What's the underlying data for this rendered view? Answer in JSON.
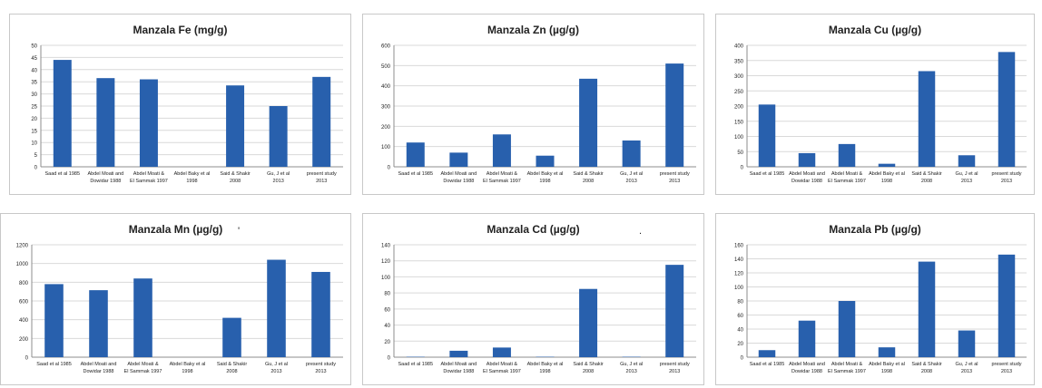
{
  "chart_data": [
    {
      "type": "bar",
      "title": "Manzala Fe (mg/g)",
      "categories": [
        [
          "Saad et al 1985"
        ],
        [
          "Abdel Moati and",
          "Dowidar 1988"
        ],
        [
          "Abdel Moati &",
          "El Sammak 1997"
        ],
        [
          "Abdel Baky et al",
          "1998"
        ],
        [
          "Said & Shakir",
          "2008"
        ],
        [
          "Gu, J et al",
          "2013"
        ],
        [
          "present study",
          "2013"
        ]
      ],
      "values": [
        44,
        36.5,
        36,
        0,
        33.5,
        25,
        37
      ],
      "ylim": [
        0,
        50
      ],
      "ticks": [
        0,
        5,
        10,
        15,
        20,
        25,
        30,
        35,
        40,
        45,
        50
      ],
      "xlabel": "",
      "ylabel": "",
      "grid": true
    },
    {
      "type": "bar",
      "title": "Manzala Zn (µg/g)",
      "categories": [
        [
          "Saad et al 1985"
        ],
        [
          "Abdel Moati and",
          "Dowidar 1988"
        ],
        [
          "Abdel Moati &",
          "El Sammak 1997"
        ],
        [
          "Abdel Baky et al",
          "1998"
        ],
        [
          "Said & Shakir",
          "2008"
        ],
        [
          "Gu, J et al",
          "2013"
        ],
        [
          "present study",
          "2013"
        ]
      ],
      "values": [
        120,
        70,
        160,
        55,
        435,
        130,
        510
      ],
      "ylim": [
        0,
        600
      ],
      "ticks": [
        0,
        100,
        200,
        300,
        400,
        500,
        600
      ],
      "xlabel": "",
      "ylabel": "",
      "grid": true
    },
    {
      "type": "bar",
      "title": "Manzala Cu (µg/g)",
      "categories": [
        [
          "Saad et al 1985"
        ],
        [
          "Abdel Moati and",
          "Dowidar 1988"
        ],
        [
          "Abdel Moati &",
          "El Sammak 1997"
        ],
        [
          "Abdel Baky et al",
          "1998"
        ],
        [
          "Said & Shakir",
          "2008"
        ],
        [
          "Gu, J et al",
          "2013"
        ],
        [
          "present study",
          "2013"
        ]
      ],
      "values": [
        205,
        45,
        75,
        10,
        315,
        38,
        378
      ],
      "ylim": [
        0,
        400
      ],
      "ticks": [
        0,
        50,
        100,
        150,
        200,
        250,
        300,
        350,
        400
      ],
      "xlabel": "",
      "ylabel": "",
      "grid": true
    },
    {
      "type": "bar",
      "title": "Manzala Mn (µg/g)",
      "categories": [
        [
          "Saad et al 1985"
        ],
        [
          "Abdel Moati and",
          "Dowidar 1988"
        ],
        [
          "Abdel Moati &",
          "El Sammak 1997"
        ],
        [
          "Abdel Baky et al",
          "1998"
        ],
        [
          "Said & Shakir",
          "2008"
        ],
        [
          "Gu, J et al",
          "2013"
        ],
        [
          "present study",
          "2013"
        ]
      ],
      "values": [
        780,
        715,
        840,
        0,
        420,
        1040,
        910
      ],
      "ylim": [
        0,
        1200
      ],
      "ticks": [
        0,
        200,
        400,
        600,
        800,
        1000,
        1200
      ],
      "xlabel": "",
      "ylabel": "",
      "grid": true
    },
    {
      "type": "bar",
      "title": "Manzala Cd (µg/g)",
      "categories": [
        [
          "Saad et al 1985"
        ],
        [
          "Abdel Moati and",
          "Dowidar 1988"
        ],
        [
          "Abdel Moati &",
          "El Sammak 1997"
        ],
        [
          "Abdel Baky et al",
          "1998"
        ],
        [
          "Said & Shakir",
          "2008"
        ],
        [
          "Gu, J et al",
          "2013"
        ],
        [
          "present study",
          "2013"
        ]
      ],
      "values": [
        0.5,
        8,
        12,
        0.5,
        85,
        0.5,
        115
      ],
      "ylim": [
        0,
        140
      ],
      "ticks": [
        0,
        20,
        40,
        60,
        80,
        100,
        120,
        140
      ],
      "xlabel": "",
      "ylabel": "",
      "grid": true
    },
    {
      "type": "bar",
      "title": "Manzala Pb (µg/g)",
      "categories": [
        [
          "Saad et al 1985"
        ],
        [
          "Abdel Moati and",
          "Dowidar 1988"
        ],
        [
          "Abdel Moati &",
          "El Sammak 1997"
        ],
        [
          "Abdel Baky et al",
          "1998"
        ],
        [
          "Said & Shakir",
          "2008"
        ],
        [
          "Gu, J et al",
          "2013"
        ],
        [
          "present study",
          "2013"
        ]
      ],
      "values": [
        10,
        52,
        80,
        14,
        136,
        38,
        146
      ],
      "ylim": [
        0,
        160
      ],
      "ticks": [
        0,
        20,
        40,
        60,
        80,
        100,
        120,
        140,
        160
      ],
      "xlabel": "",
      "ylabel": "",
      "grid": true
    }
  ],
  "stray_marks": [
    "'",
    "."
  ],
  "colors": {
    "bar": "#2860ad",
    "grid": "#d9d9d9",
    "axis": "#8c8c8c",
    "border": "#c8c8c8",
    "text": "#222222"
  }
}
